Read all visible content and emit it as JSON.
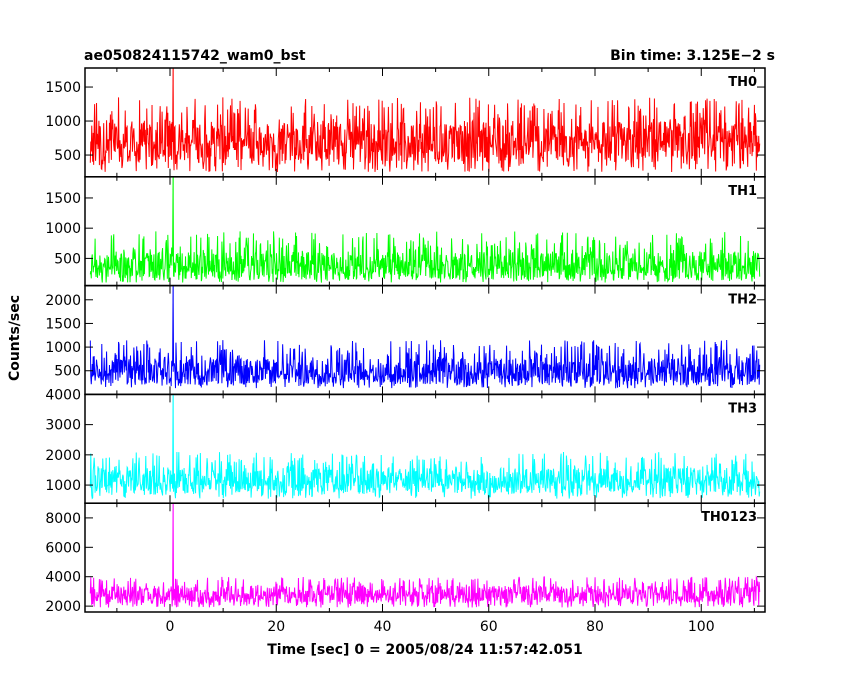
{
  "header": {
    "left_title": "ae050824115742_wam0_bst",
    "right_title": "Bin time: 3.125E−2 s"
  },
  "axes": {
    "xlabel": "Time [sec] 0 = 2005/08/24 11:57:42.051",
    "ylabel": "Counts/sec"
  },
  "chart_data": {
    "type": "line",
    "title": "ae050824115742_wam0_bst",
    "subtitle": "Bin time: 3.125E−2 s",
    "xlabel": "Time [sec] 0 = 2005/08/24 11:57:42.051",
    "ylabel": "Counts/sec",
    "xlim": [
      -16,
      112
    ],
    "x_ticks": [
      0,
      20,
      40,
      60,
      80,
      100
    ],
    "x_data_range": [
      -15,
      111
    ],
    "grid": false,
    "panels": [
      {
        "name": "TH0",
        "color": "#ff0000",
        "ylim": [
          180,
          1780
        ],
        "y_ticks": [
          500,
          1000,
          1500
        ],
        "baseline": 700,
        "noise_range": [
          250,
          1350
        ],
        "spike": {
          "x": 0.6,
          "y": 1780
        }
      },
      {
        "name": "TH1",
        "color": "#00ff00",
        "ylim": [
          50,
          1850
        ],
        "y_ticks": [
          500,
          1000,
          1500
        ],
        "baseline": 380,
        "noise_range": [
          100,
          950
        ],
        "spike": {
          "x": 0.6,
          "y": 1850
        }
      },
      {
        "name": "TH2",
        "color": "#0000ff",
        "ylim": [
          0,
          2300
        ],
        "y_ticks": [
          500,
          1000,
          1500,
          2000
        ],
        "baseline": 480,
        "noise_range": [
          130,
          1150
        ],
        "spike": {
          "x": 0.6,
          "y": 2300
        }
      },
      {
        "name": "TH3",
        "color": "#00ffff",
        "ylim": [
          400,
          4000
        ],
        "y_ticks": [
          1000,
          2000,
          3000,
          4000
        ],
        "baseline": 1150,
        "noise_range": [
          550,
          2100
        ],
        "spike": {
          "x": 0.6,
          "y": 4000
        }
      },
      {
        "name": "TH0123",
        "color": "#ff00ff",
        "ylim": [
          1600,
          9000
        ],
        "y_ticks": [
          2000,
          4000,
          6000,
          8000
        ],
        "baseline": 2800,
        "noise_range": [
          1900,
          4000
        ],
        "spike": {
          "x": 0.6,
          "y": 9000
        }
      }
    ]
  }
}
